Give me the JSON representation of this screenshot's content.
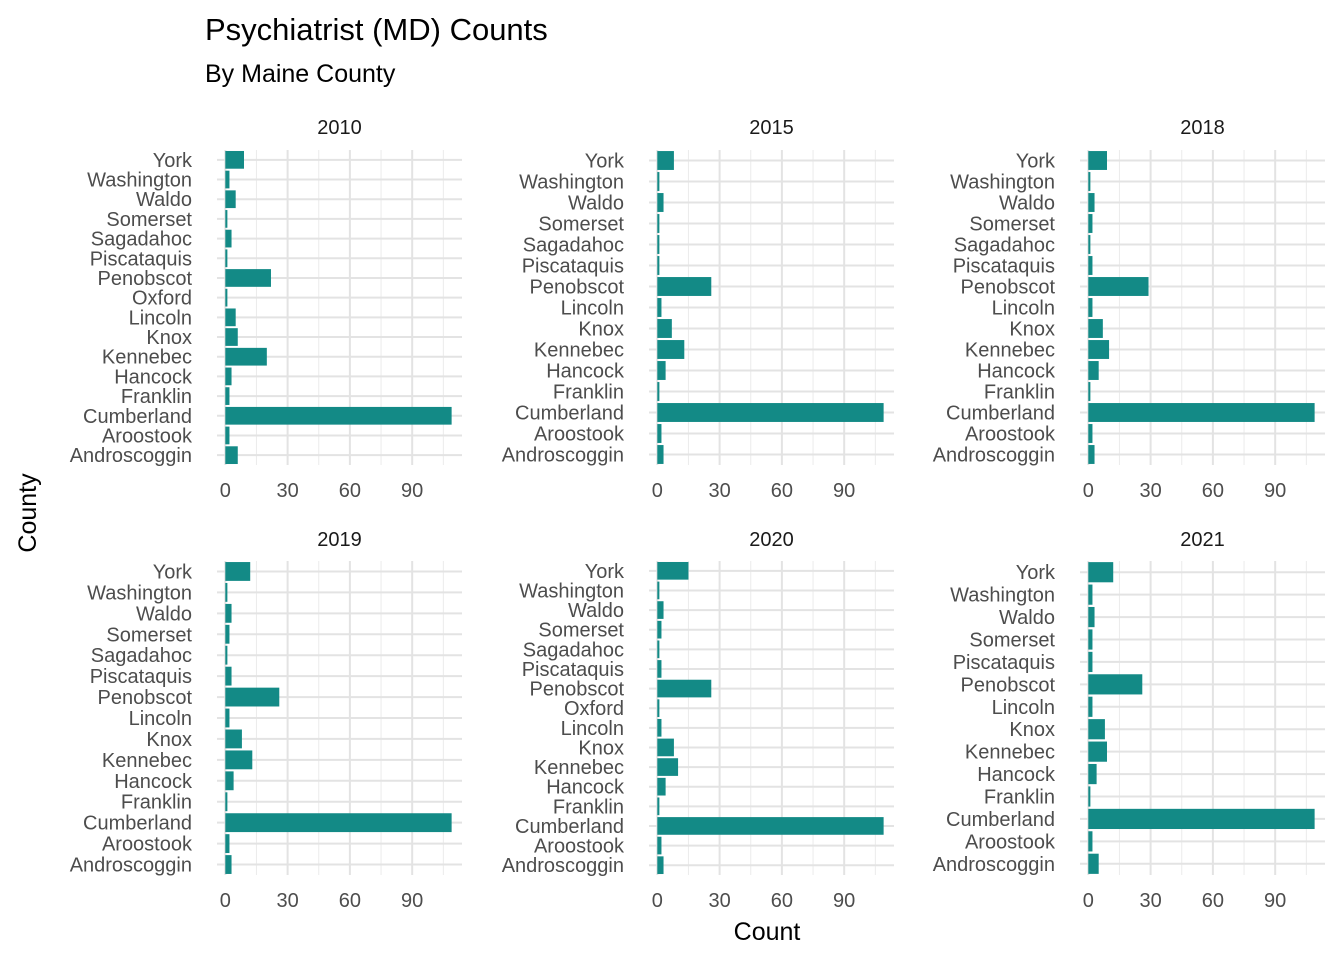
{
  "chart_data": {
    "type": "bar",
    "orientation": "horizontal",
    "title": "Psychiatrist (MD) Counts",
    "subtitle": "By Maine County",
    "xlabel": "Count",
    "ylabel": "County",
    "xlim": [
      -4,
      114
    ],
    "xticks": [
      "0",
      "30",
      "60",
      "90"
    ],
    "grid": true,
    "bar_color": "#138a86",
    "panels": [
      {
        "facet": "2010",
        "categories": [
          "Androscoggin",
          "Aroostook",
          "Cumberland",
          "Franklin",
          "Hancock",
          "Kennebec",
          "Knox",
          "Lincoln",
          "Oxford",
          "Penobscot",
          "Piscataquis",
          "Sagadahoc",
          "Somerset",
          "Waldo",
          "Washington",
          "York"
        ],
        "values": [
          6,
          2,
          109,
          2,
          3,
          20,
          6,
          5,
          1,
          22,
          1,
          3,
          1,
          5,
          2,
          9
        ]
      },
      {
        "facet": "2015",
        "categories": [
          "Androscoggin",
          "Aroostook",
          "Cumberland",
          "Franklin",
          "Hancock",
          "Kennebec",
          "Knox",
          "Lincoln",
          "Penobscot",
          "Piscataquis",
          "Sagadahoc",
          "Somerset",
          "Waldo",
          "Washington",
          "York"
        ],
        "values": [
          3,
          2,
          109,
          1,
          4,
          13,
          7,
          2,
          26,
          1,
          1,
          1,
          3,
          1,
          8
        ]
      },
      {
        "facet": "2018",
        "categories": [
          "Androscoggin",
          "Aroostook",
          "Cumberland",
          "Franklin",
          "Hancock",
          "Kennebec",
          "Knox",
          "Lincoln",
          "Penobscot",
          "Piscataquis",
          "Sagadahoc",
          "Somerset",
          "Waldo",
          "Washington",
          "York"
        ],
        "values": [
          3,
          2,
          109,
          1,
          5,
          10,
          7,
          2,
          29,
          2,
          1,
          2,
          3,
          1,
          9
        ]
      },
      {
        "facet": "2019",
        "categories": [
          "Androscoggin",
          "Aroostook",
          "Cumberland",
          "Franklin",
          "Hancock",
          "Kennebec",
          "Knox",
          "Lincoln",
          "Penobscot",
          "Piscataquis",
          "Sagadahoc",
          "Somerset",
          "Waldo",
          "Washington",
          "York"
        ],
        "values": [
          3,
          2,
          109,
          1,
          4,
          13,
          8,
          2,
          26,
          3,
          1,
          2,
          3,
          1,
          12
        ]
      },
      {
        "facet": "2020",
        "categories": [
          "Androscoggin",
          "Aroostook",
          "Cumberland",
          "Franklin",
          "Hancock",
          "Kennebec",
          "Knox",
          "Lincoln",
          "Oxford",
          "Penobscot",
          "Piscataquis",
          "Sagadahoc",
          "Somerset",
          "Waldo",
          "Washington",
          "York"
        ],
        "values": [
          3,
          2,
          109,
          1,
          4,
          10,
          8,
          2,
          1,
          26,
          2,
          1,
          2,
          3,
          1,
          15
        ]
      },
      {
        "facet": "2021",
        "categories": [
          "Androscoggin",
          "Aroostook",
          "Cumberland",
          "Franklin",
          "Hancock",
          "Kennebec",
          "Knox",
          "Lincoln",
          "Penobscot",
          "Piscataquis",
          "Somerset",
          "Waldo",
          "Washington",
          "York"
        ],
        "values": [
          5,
          2,
          109,
          1,
          4,
          9,
          8,
          2,
          26,
          2,
          2,
          3,
          2,
          12
        ]
      }
    ]
  }
}
